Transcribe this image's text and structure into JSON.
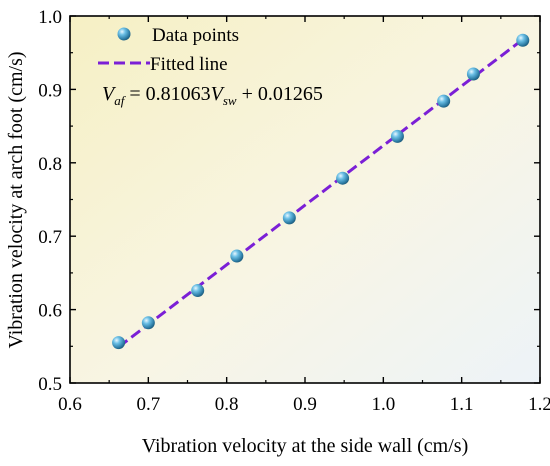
{
  "chart_data": {
    "type": "scatter",
    "xlabel": "Vibration velocity at the side wall (cm/s)",
    "ylabel": "Vibration velocity at arch foot (cm/s)",
    "xlim": [
      0.6,
      1.2
    ],
    "ylim": [
      0.5,
      1.0
    ],
    "xticks": [
      "0.6",
      "0.7",
      "0.8",
      "0.9",
      "1.0",
      "1.1",
      "1.2"
    ],
    "yticks": [
      "0.5",
      "0.6",
      "0.7",
      "0.8",
      "0.9",
      "1.0"
    ],
    "xtick_values": [
      0.6,
      0.7,
      0.8,
      0.9,
      1.0,
      1.1,
      1.2
    ],
    "ytick_values": [
      0.5,
      0.6,
      0.7,
      0.8,
      0.9,
      1.0
    ],
    "grid": false,
    "legend_position": "top-left",
    "series": [
      {
        "name": "Data points",
        "kind": "scatter",
        "color": "#4a9fc8",
        "x": [
          0.662,
          0.7,
          0.763,
          0.813,
          0.88,
          0.948,
          1.018,
          1.077,
          1.115,
          1.178
        ],
        "y": [
          0.555,
          0.582,
          0.626,
          0.673,
          0.725,
          0.779,
          0.836,
          0.884,
          0.921,
          0.967
        ]
      },
      {
        "name": "Fitted line",
        "kind": "line",
        "style": "dashed",
        "color": "#7b1fd6",
        "x": [
          0.662,
          1.178
        ],
        "y": [
          0.549,
          0.968
        ]
      }
    ],
    "annotation": {
      "symbol": "V",
      "lhs_sub": "af",
      "eq": " = 0.81063",
      "rhs_sub": "sw",
      "tail": " + 0.01265"
    }
  }
}
